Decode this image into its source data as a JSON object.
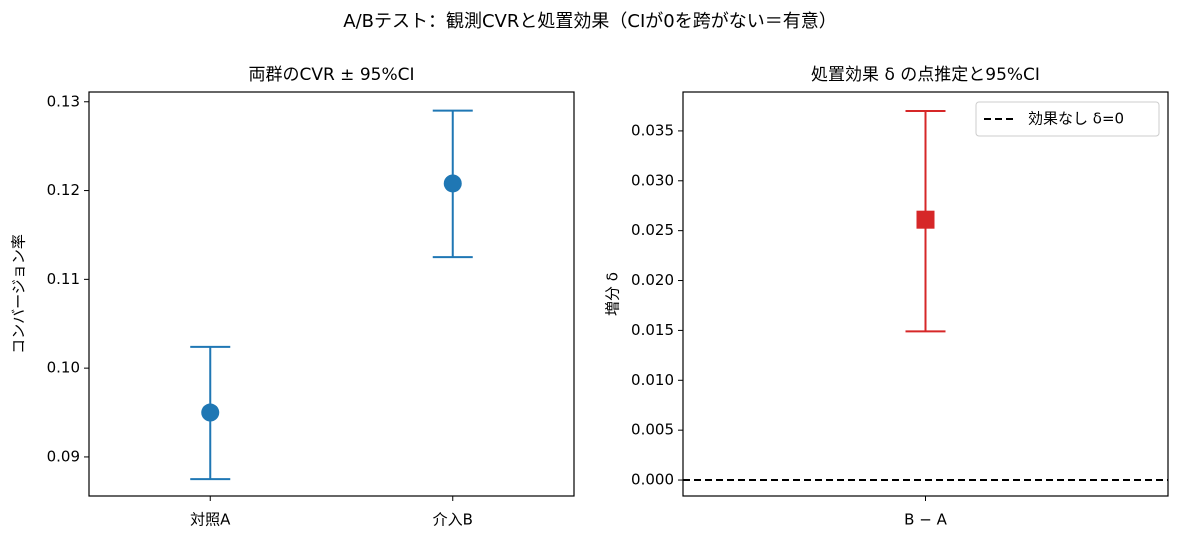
{
  "title": "A/Bテスト：観測CVRと処置効果（CIが0を跨がない＝有意）",
  "chart_data": [
    {
      "type": "errorbar",
      "title": "両群のCVR ± 95%CI",
      "ylabel": "コンバージョン率",
      "categories": [
        "対照A",
        "介入B"
      ],
      "values": [
        0.095,
        0.1208
      ],
      "ci_low": [
        0.0875,
        0.1125
      ],
      "ci_high": [
        0.1024,
        0.129
      ],
      "color": "#1f77b4",
      "marker": "circle",
      "xlim": [
        -0.5,
        1.5
      ],
      "ylim": [
        0.0856,
        0.1311
      ],
      "yticks": [
        0.09,
        {
          "value": 0.1,
          "label": "0.10"
        },
        0.11,
        0.12,
        0.13
      ]
    },
    {
      "type": "errorbar",
      "title": "処置効果 δ の点推定と95%CI",
      "ylabel": "増分 δ",
      "categories": [
        "B − A"
      ],
      "values": [
        0.0261
      ],
      "ci_low": [
        0.0149
      ],
      "ci_high": [
        0.037
      ],
      "color": "#d62728",
      "marker": "square",
      "xlim": [
        -0.5,
        0.5
      ],
      "ylim": [
        -0.0016,
        0.0389
      ],
      "yticks": [
        {
          "value": 0,
          "label": "0.000"
        },
        0.005,
        {
          "value": 0.01,
          "label": "0.010"
        },
        0.015,
        {
          "value": 0.02,
          "label": "0.020"
        },
        0.025,
        {
          "value": 0.03,
          "label": "0.030"
        },
        0.035
      ],
      "reference_line": {
        "value": 0,
        "label": "効果なし δ=0",
        "color": "#000000",
        "style": "dashed"
      },
      "legend": "upper right"
    }
  ]
}
